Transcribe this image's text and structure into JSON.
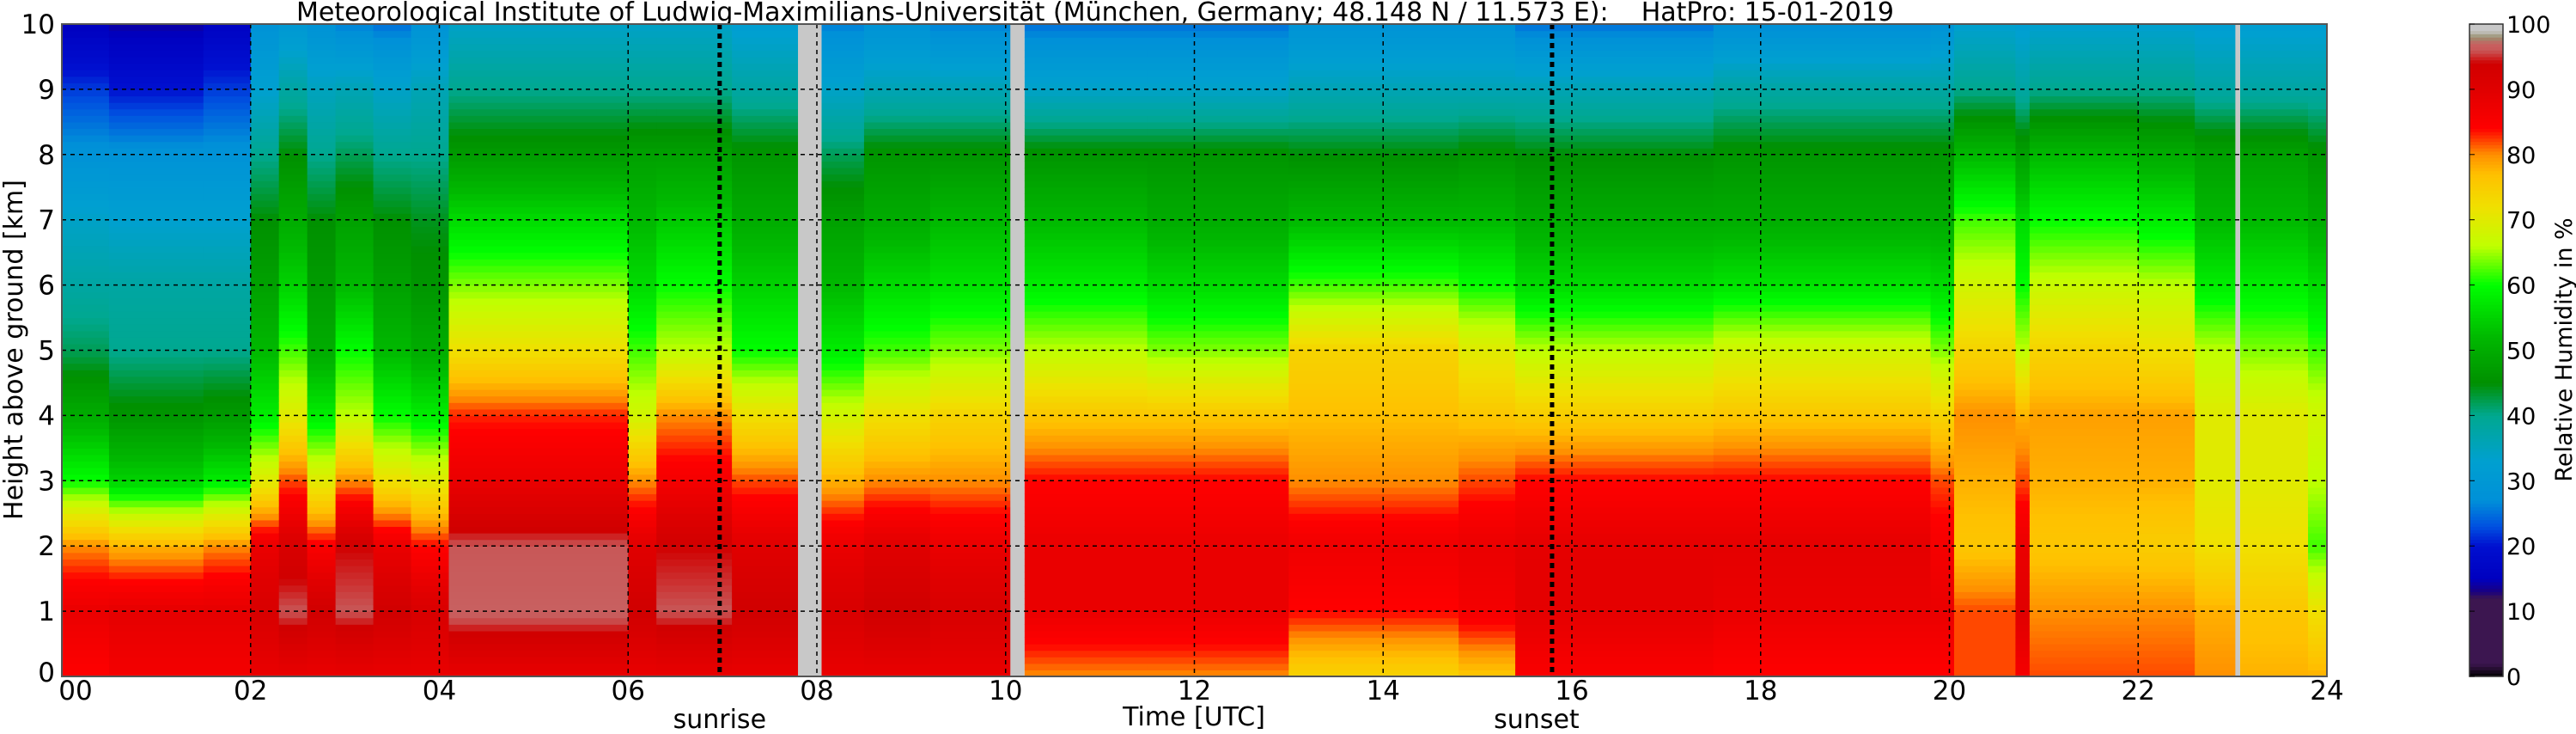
{
  "chart_data": {
    "type": "heatmap",
    "title": "Meteorological Institute of Ludwig-Maximilians-Universität (München, Germany; 48.148 N / 11.573 E):    HatPro: 15-01-2019",
    "xlabel": "Time [UTC]",
    "ylabel": "Height above ground [km]",
    "colorbar_label": "Relative Humidity in %",
    "xlim": [
      0,
      24
    ],
    "ylim": [
      0,
      10
    ],
    "clim": [
      0,
      100
    ],
    "grid": true,
    "x_ticks": [
      0,
      2,
      4,
      6,
      8,
      10,
      12,
      14,
      16,
      18,
      20,
      22,
      24
    ],
    "x_tick_labels": [
      "00",
      "02",
      "04",
      "06",
      "08",
      "10",
      "12",
      "14",
      "16",
      "18",
      "20",
      "22",
      "24"
    ],
    "y_ticks": [
      0,
      1,
      2,
      3,
      4,
      5,
      6,
      7,
      8,
      9,
      10
    ],
    "y_tick_labels": [
      "0",
      "1",
      "2",
      "3",
      "4",
      "5",
      "6",
      "7",
      "8",
      "9",
      "10"
    ],
    "colorbar_ticks": [
      "0",
      "10",
      "20",
      "30",
      "40",
      "50",
      "60",
      "70",
      "80",
      "90",
      "100"
    ],
    "annotations": [
      {
        "label": "sunrise",
        "time": 6.97
      },
      {
        "label": "sunset",
        "time": 15.79
      }
    ],
    "missing_data_color": "#c8c8c8",
    "missing_intervals": [
      [
        7.8,
        8.05
      ],
      [
        10.05,
        10.2
      ],
      [
        23.03,
        23.08
      ]
    ],
    "profile_heights_km": [
      0,
      1,
      2,
      3,
      4,
      5,
      6,
      7,
      8,
      9,
      10
    ],
    "columns": [
      {
        "t": [
          0,
          0.5
        ],
        "rh": [
          84,
          88,
          80,
          60,
          50,
          42,
          38,
          34,
          28,
          22,
          15
        ]
      },
      {
        "t": [
          0.5,
          1.5
        ],
        "rh": [
          86,
          89,
          78,
          55,
          46,
          40,
          38,
          33,
          28,
          20,
          14
        ]
      },
      {
        "t": [
          1.5,
          2
        ],
        "rh": [
          86,
          89,
          80,
          58,
          47,
          40,
          38,
          33,
          28,
          22,
          16
        ]
      },
      {
        "t": [
          2,
          2.3
        ],
        "rh": [
          88,
          92,
          88,
          70,
          58,
          52,
          48,
          45,
          40,
          33,
          28
        ]
      },
      {
        "t": [
          2.3,
          2.6
        ],
        "rh": [
          88,
          96,
          92,
          82,
          70,
          62,
          55,
          50,
          45,
          38,
          30
        ]
      },
      {
        "t": [
          2.6,
          2.9
        ],
        "rh": [
          88,
          94,
          85,
          70,
          58,
          50,
          47,
          45,
          40,
          35,
          28
        ]
      },
      {
        "t": [
          2.9,
          3.3
        ],
        "rh": [
          88,
          96,
          94,
          80,
          66,
          60,
          52,
          48,
          42,
          36,
          26
        ]
      },
      {
        "t": [
          3.3,
          3.7
        ],
        "rh": [
          88,
          94,
          88,
          72,
          60,
          52,
          48,
          45,
          40,
          34,
          25
        ]
      },
      {
        "t": [
          3.7,
          4.1
        ],
        "rh": [
          88,
          92,
          84,
          70,
          58,
          50,
          46,
          44,
          40,
          36,
          28
        ]
      },
      {
        "t": [
          4.1,
          6
        ],
        "rh": [
          88,
          97,
          96,
          88,
          83,
          72,
          64,
          56,
          47,
          40,
          34
        ]
      },
      {
        "t": [
          6,
          6.3
        ],
        "rh": [
          88,
          94,
          90,
          80,
          68,
          62,
          56,
          52,
          48,
          40,
          34
        ]
      },
      {
        "t": [
          6.3,
          7.1
        ],
        "rh": [
          88,
          96,
          94,
          86,
          80,
          66,
          60,
          54,
          48,
          40,
          34
        ]
      },
      {
        "t": [
          7.1,
          7.8
        ],
        "rh": [
          88,
          94,
          90,
          82,
          72,
          60,
          55,
          50,
          46,
          38,
          32
        ]
      },
      {
        "t": [
          8.05,
          8.5
        ],
        "rh": [
          88,
          92,
          88,
          78,
          68,
          58,
          52,
          48,
          42,
          34,
          26
        ]
      },
      {
        "t": [
          8.5,
          9.2
        ],
        "rh": [
          88,
          94,
          90,
          80,
          72,
          62,
          56,
          50,
          46,
          36,
          28
        ]
      },
      {
        "t": [
          9.2,
          10.05
        ],
        "rh": [
          88,
          92,
          88,
          80,
          74,
          64,
          57,
          52,
          46,
          36,
          26
        ]
      },
      {
        "t": [
          10.2,
          11.5
        ],
        "rh": [
          80,
          88,
          88,
          84,
          76,
          66,
          58,
          52,
          46,
          34,
          25
        ]
      },
      {
        "t": [
          11.5,
          13
        ],
        "rh": [
          80,
          88,
          88,
          84,
          76,
          64,
          56,
          50,
          46,
          34,
          25
        ]
      },
      {
        "t": [
          13,
          14.8
        ],
        "rh": [
          74,
          84,
          87,
          80,
          77,
          74,
          62,
          52,
          45,
          36,
          28
        ]
      },
      {
        "t": [
          14.8,
          15.4
        ],
        "rh": [
          76,
          86,
          88,
          82,
          76,
          70,
          60,
          52,
          46,
          36,
          28
        ]
      },
      {
        "t": [
          15.4,
          17.5
        ],
        "rh": [
          85,
          89,
          89,
          84,
          75,
          66,
          56,
          50,
          45,
          36,
          25
        ]
      },
      {
        "t": [
          17.5,
          19.8
        ],
        "rh": [
          84,
          88,
          89,
          84,
          76,
          68,
          57,
          50,
          46,
          38,
          27
        ]
      },
      {
        "t": [
          19.8,
          20.05
        ],
        "rh": [
          84,
          88,
          86,
          82,
          74,
          64,
          56,
          50,
          46,
          38,
          28
        ]
      },
      {
        "t": [
          20.05,
          20.7
        ],
        "rh": [
          82,
          82,
          76,
          78,
          80,
          74,
          68,
          62,
          52,
          40,
          33
        ]
      },
      {
        "t": [
          20.7,
          20.85
        ],
        "rh": [
          86,
          90,
          88,
          82,
          78,
          66,
          60,
          56,
          48,
          38,
          32
        ]
      },
      {
        "t": [
          20.85,
          22
        ],
        "rh": [
          82,
          80,
          76,
          78,
          79,
          74,
          67,
          60,
          52,
          40,
          33
        ]
      },
      {
        "t": [
          22,
          22.6
        ],
        "rh": [
          82,
          80,
          75,
          78,
          79,
          72,
          66,
          58,
          50,
          40,
          33
        ]
      },
      {
        "t": [
          22.6,
          23.03
        ],
        "rh": [
          80,
          78,
          72,
          70,
          70,
          66,
          58,
          52,
          48,
          38,
          32
        ]
      },
      {
        "t": [
          23.08,
          23.8
        ],
        "rh": [
          78,
          76,
          72,
          70,
          70,
          64,
          58,
          52,
          48,
          38,
          32
        ]
      },
      {
        "t": [
          23.8,
          24
        ],
        "rh": [
          78,
          72,
          62,
          66,
          68,
          62,
          56,
          50,
          46,
          38,
          32
        ]
      }
    ],
    "colormap": [
      {
        "v": 0,
        "c": "#000000"
      },
      {
        "v": 2,
        "c": "#3c1650"
      },
      {
        "v": 12,
        "c": "#3c1650"
      },
      {
        "v": 13,
        "c": "#1a0080"
      },
      {
        "v": 15,
        "c": "#0000c0"
      },
      {
        "v": 20,
        "c": "#0010d0"
      },
      {
        "v": 23,
        "c": "#0050e0"
      },
      {
        "v": 27,
        "c": "#0090d8"
      },
      {
        "v": 33,
        "c": "#00a0d0"
      },
      {
        "v": 40,
        "c": "#00a890"
      },
      {
        "v": 45,
        "c": "#009000"
      },
      {
        "v": 52,
        "c": "#00b800"
      },
      {
        "v": 60,
        "c": "#00ff00"
      },
      {
        "v": 66,
        "c": "#c0ff00"
      },
      {
        "v": 72,
        "c": "#f0e000"
      },
      {
        "v": 77,
        "c": "#ffc000"
      },
      {
        "v": 80,
        "c": "#ff9000"
      },
      {
        "v": 84,
        "c": "#ff0000"
      },
      {
        "v": 90,
        "c": "#e00000"
      },
      {
        "v": 94,
        "c": "#d00000"
      },
      {
        "v": 96,
        "c": "#c85858"
      },
      {
        "v": 97,
        "c": "#c86060"
      },
      {
        "v": 98,
        "c": "#989070"
      },
      {
        "v": 99,
        "c": "#c8c8c8"
      },
      {
        "v": 100,
        "c": "#c8c8c8"
      }
    ]
  }
}
